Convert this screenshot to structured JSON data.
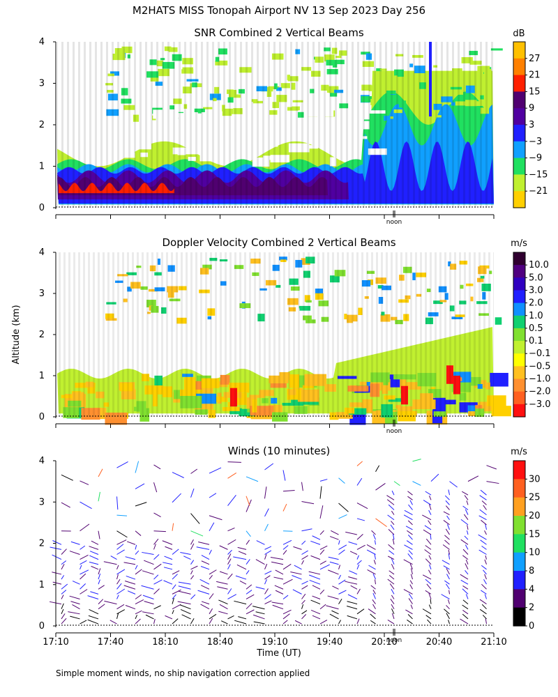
{
  "figure": {
    "title": "M2HATS MISS Tonopah Airport NV  13 Sep 2023 Day 256",
    "ylabel": "Altitude (km)",
    "xlabel": "Time (UT)",
    "x_ticks": [
      "17:10",
      "17:40",
      "18:10",
      "18:40",
      "19:10",
      "19:40",
      "20:10",
      "20:40",
      "21:10"
    ],
    "noon_label": "noon",
    "footnote": "Simple moment winds, no ship navigation correction applied"
  },
  "chart_data": [
    {
      "type": "heatmap",
      "title": "SNR Combined 2 Vertical Beams",
      "xlabel": "Time (UT)",
      "ylabel": "Altitude (km)",
      "xlim": [
        "17:10",
        "21:10"
      ],
      "ylim": [
        0,
        4
      ],
      "y_ticks": [
        0,
        1,
        2,
        3,
        4
      ],
      "colorbar": {
        "unit": "dB",
        "labels": [
          "27",
          "21",
          "15",
          "9",
          "3",
          "−3",
          "−9",
          "−15",
          "−21"
        ],
        "colors": [
          "#ffc000",
          "#ff8000",
          "#ff2000",
          "#500070",
          "#5000a0",
          "#2020ff",
          "#10a0ff",
          "#20e060",
          "#c0f030",
          "#ffd000"
        ]
      }
    },
    {
      "type": "heatmap",
      "title": "Doppler Velocity Combined 2 Vertical Beams",
      "xlabel": "Time (UT)",
      "ylabel": "Altitude (km)",
      "xlim": [
        "17:10",
        "21:10"
      ],
      "ylim": [
        0,
        4
      ],
      "y_ticks": [
        0,
        1,
        2,
        3,
        4
      ],
      "colorbar": {
        "unit": "m/s",
        "labels": [
          "10.0",
          "5.0",
          "3.0",
          "2.0",
          "1.0",
          "0.5",
          "0.1",
          "−0.1",
          "−0.5",
          "−1.0",
          "−2.0",
          "−3.0"
        ],
        "colors": [
          "#300030",
          "#500080",
          "#3000c0",
          "#2020ff",
          "#1090ff",
          "#10d070",
          "#80e030",
          "#c0f030",
          "#ffff00",
          "#ffc020",
          "#ff9030",
          "#ff6020",
          "#ff1010"
        ]
      }
    },
    {
      "type": "scatter",
      "title": "Winds (10 minutes)",
      "xlabel": "Time (UT)",
      "ylabel": "Altitude (km)",
      "xlim": [
        "17:10",
        "21:10"
      ],
      "ylim": [
        0,
        4
      ],
      "y_ticks": [
        0,
        1,
        2,
        3,
        4
      ],
      "colorbar": {
        "unit": "m/s",
        "labels": [
          "30",
          "25",
          "20",
          "15",
          "10",
          "8",
          "4",
          "2",
          "0"
        ],
        "colors": [
          "#ff1010",
          "#ff6020",
          "#ffa020",
          "#80e030",
          "#20e060",
          "#10a0ff",
          "#2020ff",
          "#500070",
          "#000000"
        ]
      }
    }
  ]
}
